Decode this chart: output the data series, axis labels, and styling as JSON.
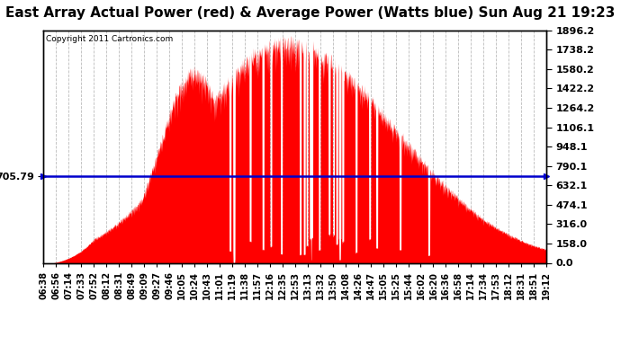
{
  "title": "East Array Actual Power (red) & Average Power (Watts blue) Sun Aug 21 19:23",
  "copyright": "Copyright 2011 Cartronics.com",
  "avg_power": 705.79,
  "ymax": 1896.2,
  "ymin": 0.0,
  "yticks": [
    0.0,
    158.0,
    316.0,
    474.1,
    632.1,
    790.1,
    948.1,
    1106.1,
    1264.2,
    1422.2,
    1580.2,
    1738.2,
    1896.2
  ],
  "xtick_labels": [
    "06:38",
    "06:56",
    "07:14",
    "07:33",
    "07:52",
    "08:12",
    "08:31",
    "08:49",
    "09:09",
    "09:27",
    "09:46",
    "10:05",
    "10:24",
    "10:43",
    "11:01",
    "11:19",
    "11:38",
    "11:57",
    "12:16",
    "12:35",
    "12:53",
    "13:13",
    "13:32",
    "13:50",
    "14:08",
    "14:26",
    "14:47",
    "15:05",
    "15:25",
    "15:44",
    "16:02",
    "16:20",
    "16:36",
    "16:58",
    "17:14",
    "17:34",
    "17:53",
    "18:12",
    "18:31",
    "18:51",
    "19:12"
  ],
  "background_color": "#ffffff",
  "grid_color": "#aaaaaa",
  "fill_color": "#ff0000",
  "line_color": "#0000cc",
  "title_fontsize": 11,
  "axis_label_fontsize": 8,
  "figsize": [
    6.9,
    3.75
  ],
  "dpi": 100
}
